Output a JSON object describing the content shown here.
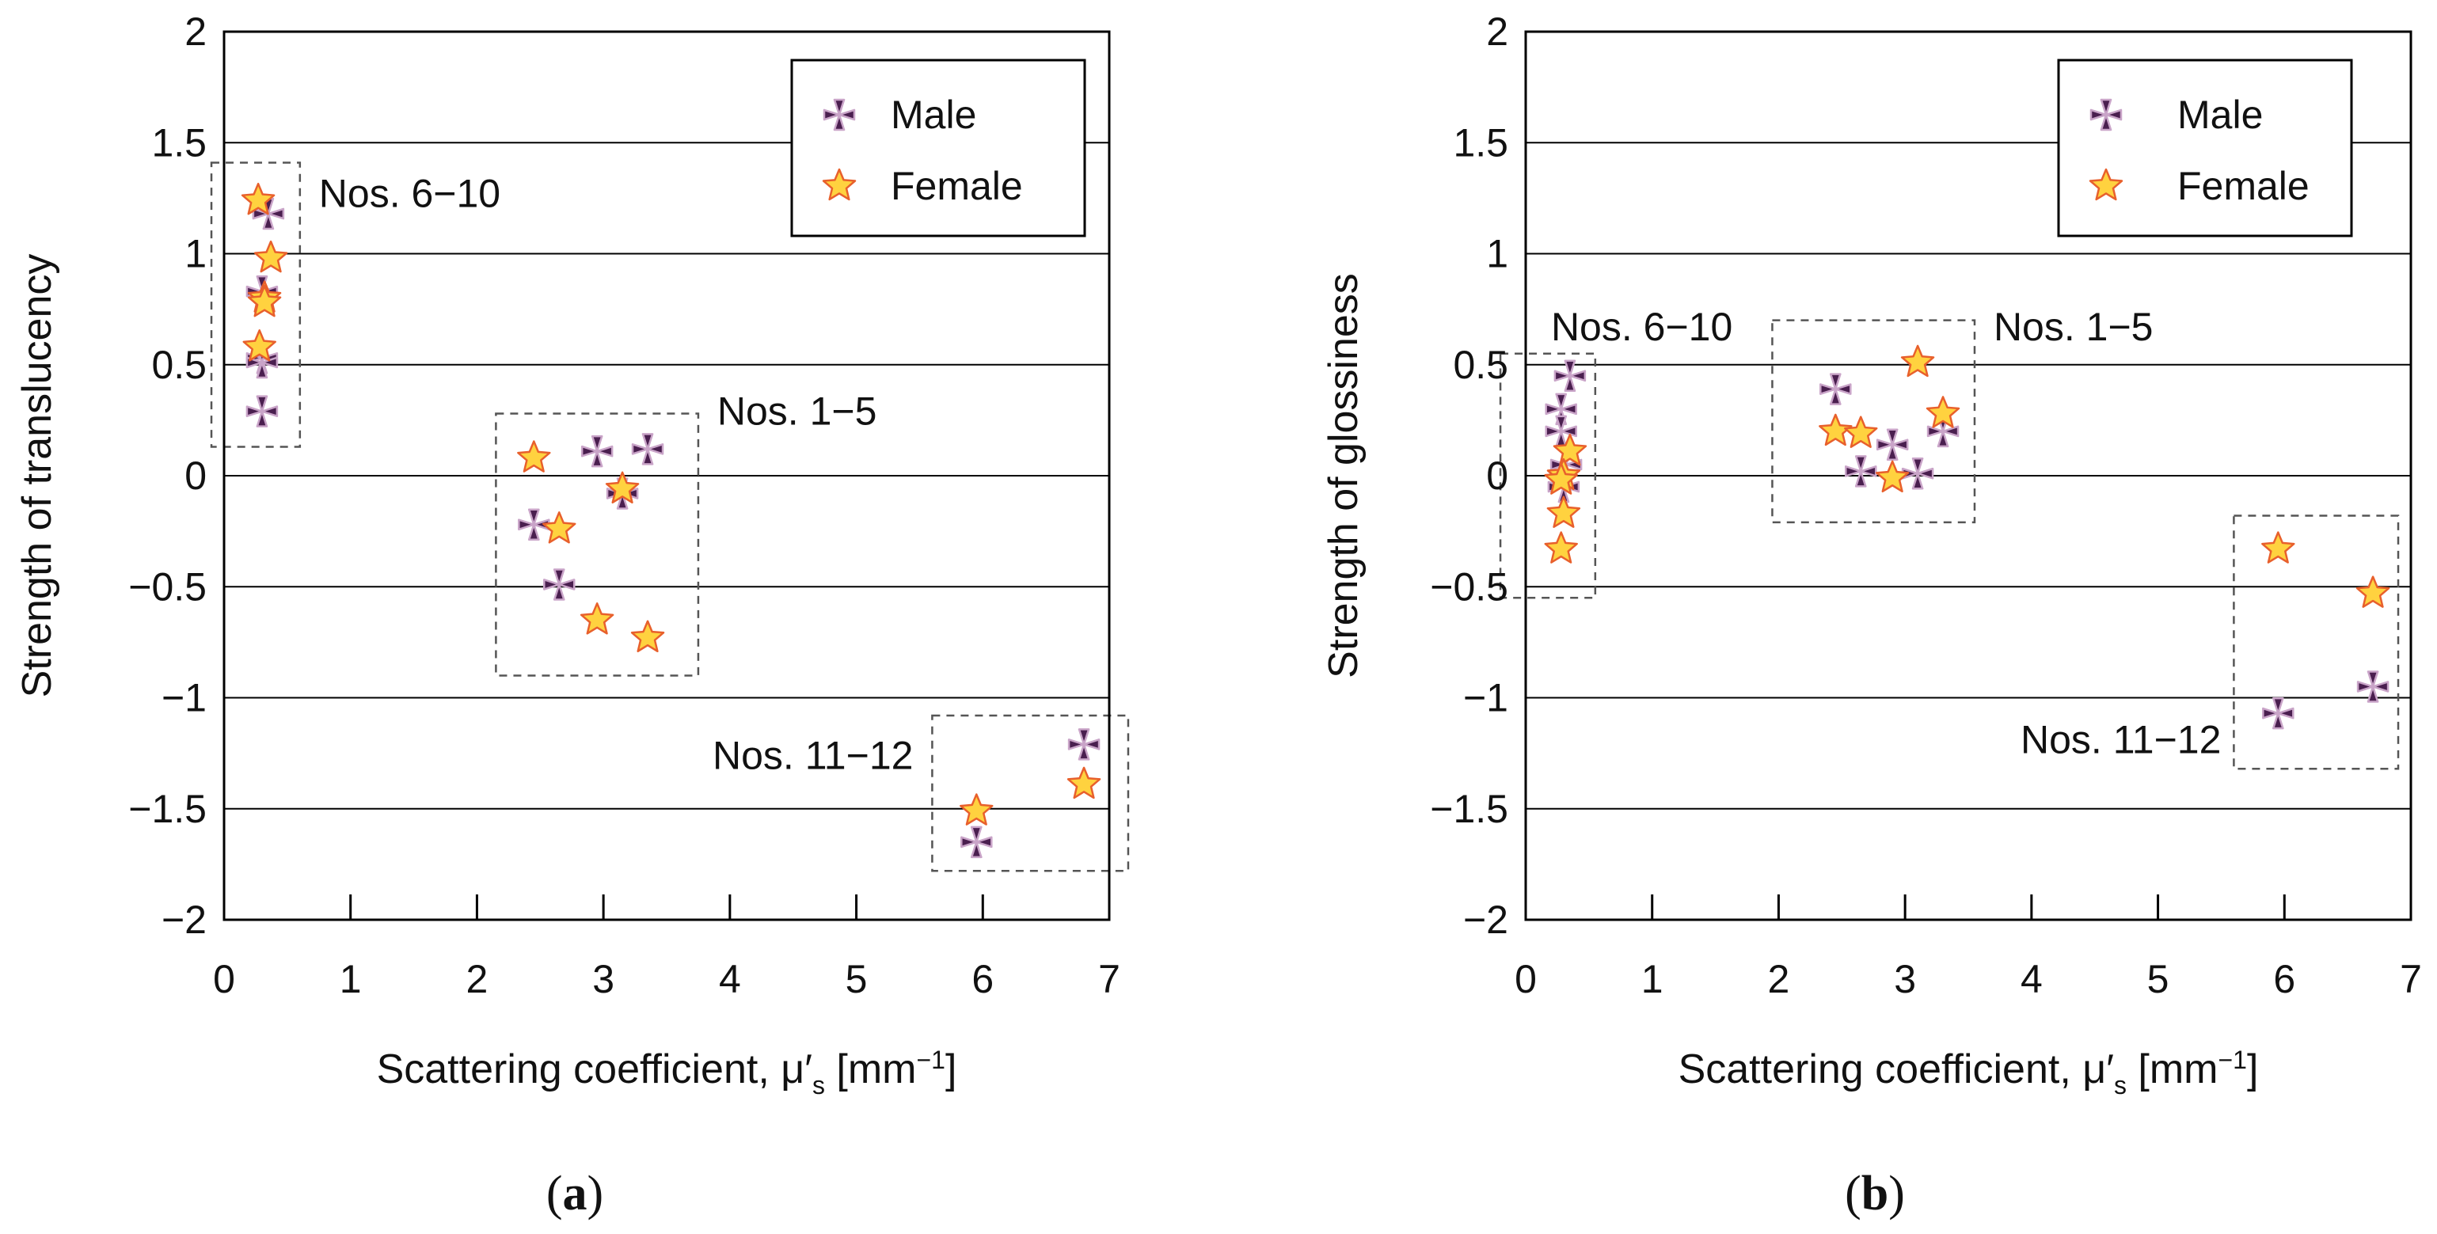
{
  "colors": {
    "male_fill": "#4a1f4f",
    "male_stroke": "#c9a4c8",
    "female_fill": "#ffd23f",
    "female_stroke": "#e8602c",
    "grid": "#000000",
    "dashed_box": "#555555"
  },
  "chart_data": [
    {
      "type": "scatter",
      "panel_label": "a",
      "title": "",
      "xlabel": "Scattering coefficient, μ′",
      "xlabel_sub": "s",
      "xlabel_unit": " [mm",
      "xlabel_sup": "−1",
      "xlabel_close": "]",
      "ylabel": "Strength of translucency",
      "xlim": [
        0,
        7
      ],
      "ylim": [
        -2,
        2
      ],
      "xticks": [
        0,
        1,
        2,
        3,
        4,
        5,
        6,
        7
      ],
      "xtick_labels": [
        "0",
        "1",
        "2",
        "3",
        "4",
        "5",
        "6",
        "7"
      ],
      "yticks": [
        -2,
        -1.5,
        -1,
        -0.5,
        0,
        0.5,
        1,
        1.5,
        2
      ],
      "ytick_labels": [
        "−2",
        "−1.5",
        "−1",
        "−0.5",
        "0",
        "0.5",
        "1",
        "1.5",
        "2"
      ],
      "legend": {
        "position": "top-right",
        "entries": [
          "Male",
          "Female"
        ]
      },
      "series": [
        {
          "name": "Male",
          "points": [
            [
              0.35,
              1.18
            ],
            [
              0.3,
              0.83
            ],
            [
              0.3,
              0.53
            ],
            [
              0.3,
              0.51
            ],
            [
              0.3,
              0.29
            ],
            [
              2.95,
              0.11
            ],
            [
              3.35,
              0.12
            ],
            [
              3.15,
              -0.08
            ],
            [
              2.45,
              -0.22
            ],
            [
              2.65,
              -0.49
            ],
            [
              6.8,
              -1.21
            ],
            [
              5.95,
              -1.65
            ]
          ]
        },
        {
          "name": "Female",
          "points": [
            [
              0.27,
              1.24
            ],
            [
              0.37,
              0.98
            ],
            [
              0.32,
              0.8
            ],
            [
              0.32,
              0.78
            ],
            [
              0.28,
              0.58
            ],
            [
              2.45,
              0.08
            ],
            [
              3.15,
              -0.06
            ],
            [
              2.65,
              -0.24
            ],
            [
              2.95,
              -0.65
            ],
            [
              3.35,
              -0.73
            ],
            [
              5.95,
              -1.51
            ],
            [
              6.8,
              -1.39
            ]
          ]
        }
      ],
      "groups": [
        {
          "label": "Nos. 6−10",
          "x0": -0.1,
          "x1": 0.6,
          "y0": 0.13,
          "y1": 1.41,
          "label_x": 0.75,
          "label_y": 1.21,
          "anchor": "start"
        },
        {
          "label": "Nos. 1−5",
          "x0": 2.15,
          "x1": 3.75,
          "y0": -0.9,
          "y1": 0.28,
          "label_x": 3.9,
          "label_y": 0.23,
          "anchor": "start"
        },
        {
          "label": "Nos. 11−12",
          "x0": 5.6,
          "x1": 7.15,
          "y0": -1.78,
          "y1": -1.08,
          "label_x": 5.45,
          "label_y": -1.32,
          "anchor": "end"
        }
      ]
    },
    {
      "type": "scatter",
      "panel_label": "b",
      "title": "",
      "xlabel": "Scattering coefficient, μ′",
      "xlabel_sub": "s",
      "xlabel_unit": " [mm",
      "xlabel_sup": "−1",
      "xlabel_close": "]",
      "ylabel": "Strength of glossiness",
      "xlim": [
        0,
        7
      ],
      "ylim": [
        -2,
        2
      ],
      "xticks": [
        0,
        1,
        2,
        3,
        4,
        5,
        6,
        7
      ],
      "xtick_labels": [
        "0",
        "1",
        "2",
        "3",
        "4",
        "5",
        "6",
        "7"
      ],
      "yticks": [
        -2,
        -1.5,
        -1,
        -0.5,
        0,
        0.5,
        1,
        1.5,
        2
      ],
      "ytick_labels": [
        "−2",
        "−1.5",
        "−1",
        "−0.5",
        "0",
        "0.5",
        "1",
        "1.5",
        "2"
      ],
      "legend": {
        "position": "top-right",
        "entries": [
          "Male",
          "Female"
        ]
      },
      "series": [
        {
          "name": "Male",
          "points": [
            [
              0.35,
              0.45
            ],
            [
              0.28,
              0.3
            ],
            [
              0.28,
              0.2
            ],
            [
              0.32,
              0.05
            ],
            [
              0.3,
              -0.05
            ],
            [
              2.45,
              0.39
            ],
            [
              2.65,
              0.02
            ],
            [
              2.9,
              0.14
            ],
            [
              3.1,
              0.01
            ],
            [
              3.3,
              0.2
            ],
            [
              5.95,
              -1.07
            ],
            [
              6.7,
              -0.95
            ]
          ]
        },
        {
          "name": "Female",
          "points": [
            [
              0.35,
              0.11
            ],
            [
              0.3,
              0.0
            ],
            [
              0.28,
              -0.02
            ],
            [
              0.3,
              -0.17
            ],
            [
              0.28,
              -0.33
            ],
            [
              2.45,
              0.2
            ],
            [
              2.65,
              0.19
            ],
            [
              2.9,
              -0.01
            ],
            [
              3.1,
              0.51
            ],
            [
              3.3,
              0.28
            ],
            [
              5.95,
              -0.33
            ],
            [
              6.7,
              -0.53
            ]
          ]
        }
      ],
      "groups": [
        {
          "label": "Nos. 6−10",
          "x0": -0.2,
          "x1": 0.55,
          "y0": -0.55,
          "y1": 0.55,
          "label_x": 0.2,
          "label_y": 0.61,
          "anchor": "start"
        },
        {
          "label": "Nos. 1−5",
          "x0": 1.95,
          "x1": 3.55,
          "y0": -0.21,
          "y1": 0.7,
          "label_x": 3.7,
          "label_y": 0.61,
          "anchor": "start"
        },
        {
          "label": "Nos. 11−12",
          "x0": 5.6,
          "x1": 6.9,
          "y0": -1.32,
          "y1": -0.18,
          "label_x": 5.5,
          "label_y": -1.25,
          "anchor": "end"
        }
      ]
    }
  ]
}
